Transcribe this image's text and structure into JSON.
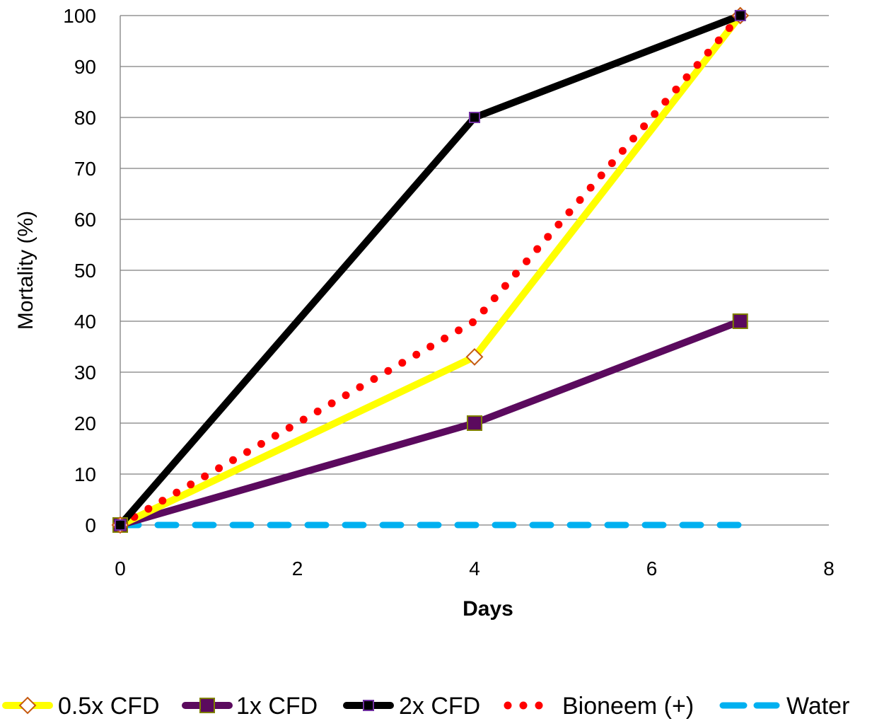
{
  "chart_data": {
    "type": "line",
    "title": "",
    "xlabel": "Days",
    "ylabel": "Mortality (%)",
    "xlim": [
      0,
      8
    ],
    "ylim": [
      0,
      100
    ],
    "x_ticks": [
      0,
      2,
      4,
      6,
      8
    ],
    "y_ticks": [
      0,
      10,
      20,
      30,
      40,
      50,
      60,
      70,
      80,
      90,
      100
    ],
    "grid": "horizontal",
    "legend_position": "bottom",
    "series": [
      {
        "name": "0.5x CFD",
        "x": [
          0,
          4,
          7
        ],
        "values": [
          0,
          33,
          100
        ],
        "color": "#FFFF00",
        "marker": "diamond",
        "style": "solid"
      },
      {
        "name": "1x CFD",
        "x": [
          0,
          4,
          7
        ],
        "values": [
          0,
          20,
          40
        ],
        "color": "#5B0A5E",
        "marker": "square",
        "style": "solid"
      },
      {
        "name": "2x CFD",
        "x": [
          0,
          4,
          7
        ],
        "values": [
          0,
          80,
          100
        ],
        "color": "#000000",
        "marker": "square",
        "style": "solid"
      },
      {
        "name": "Bioneem (+)",
        "x": [
          0,
          4,
          7
        ],
        "values": [
          0,
          40,
          100
        ],
        "color": "#FF0000",
        "marker": "none",
        "style": "dotted"
      },
      {
        "name": "Water",
        "x": [
          0,
          4,
          7
        ],
        "values": [
          0,
          0,
          0
        ],
        "color": "#00B0F0",
        "marker": "none",
        "style": "dashed"
      }
    ]
  }
}
